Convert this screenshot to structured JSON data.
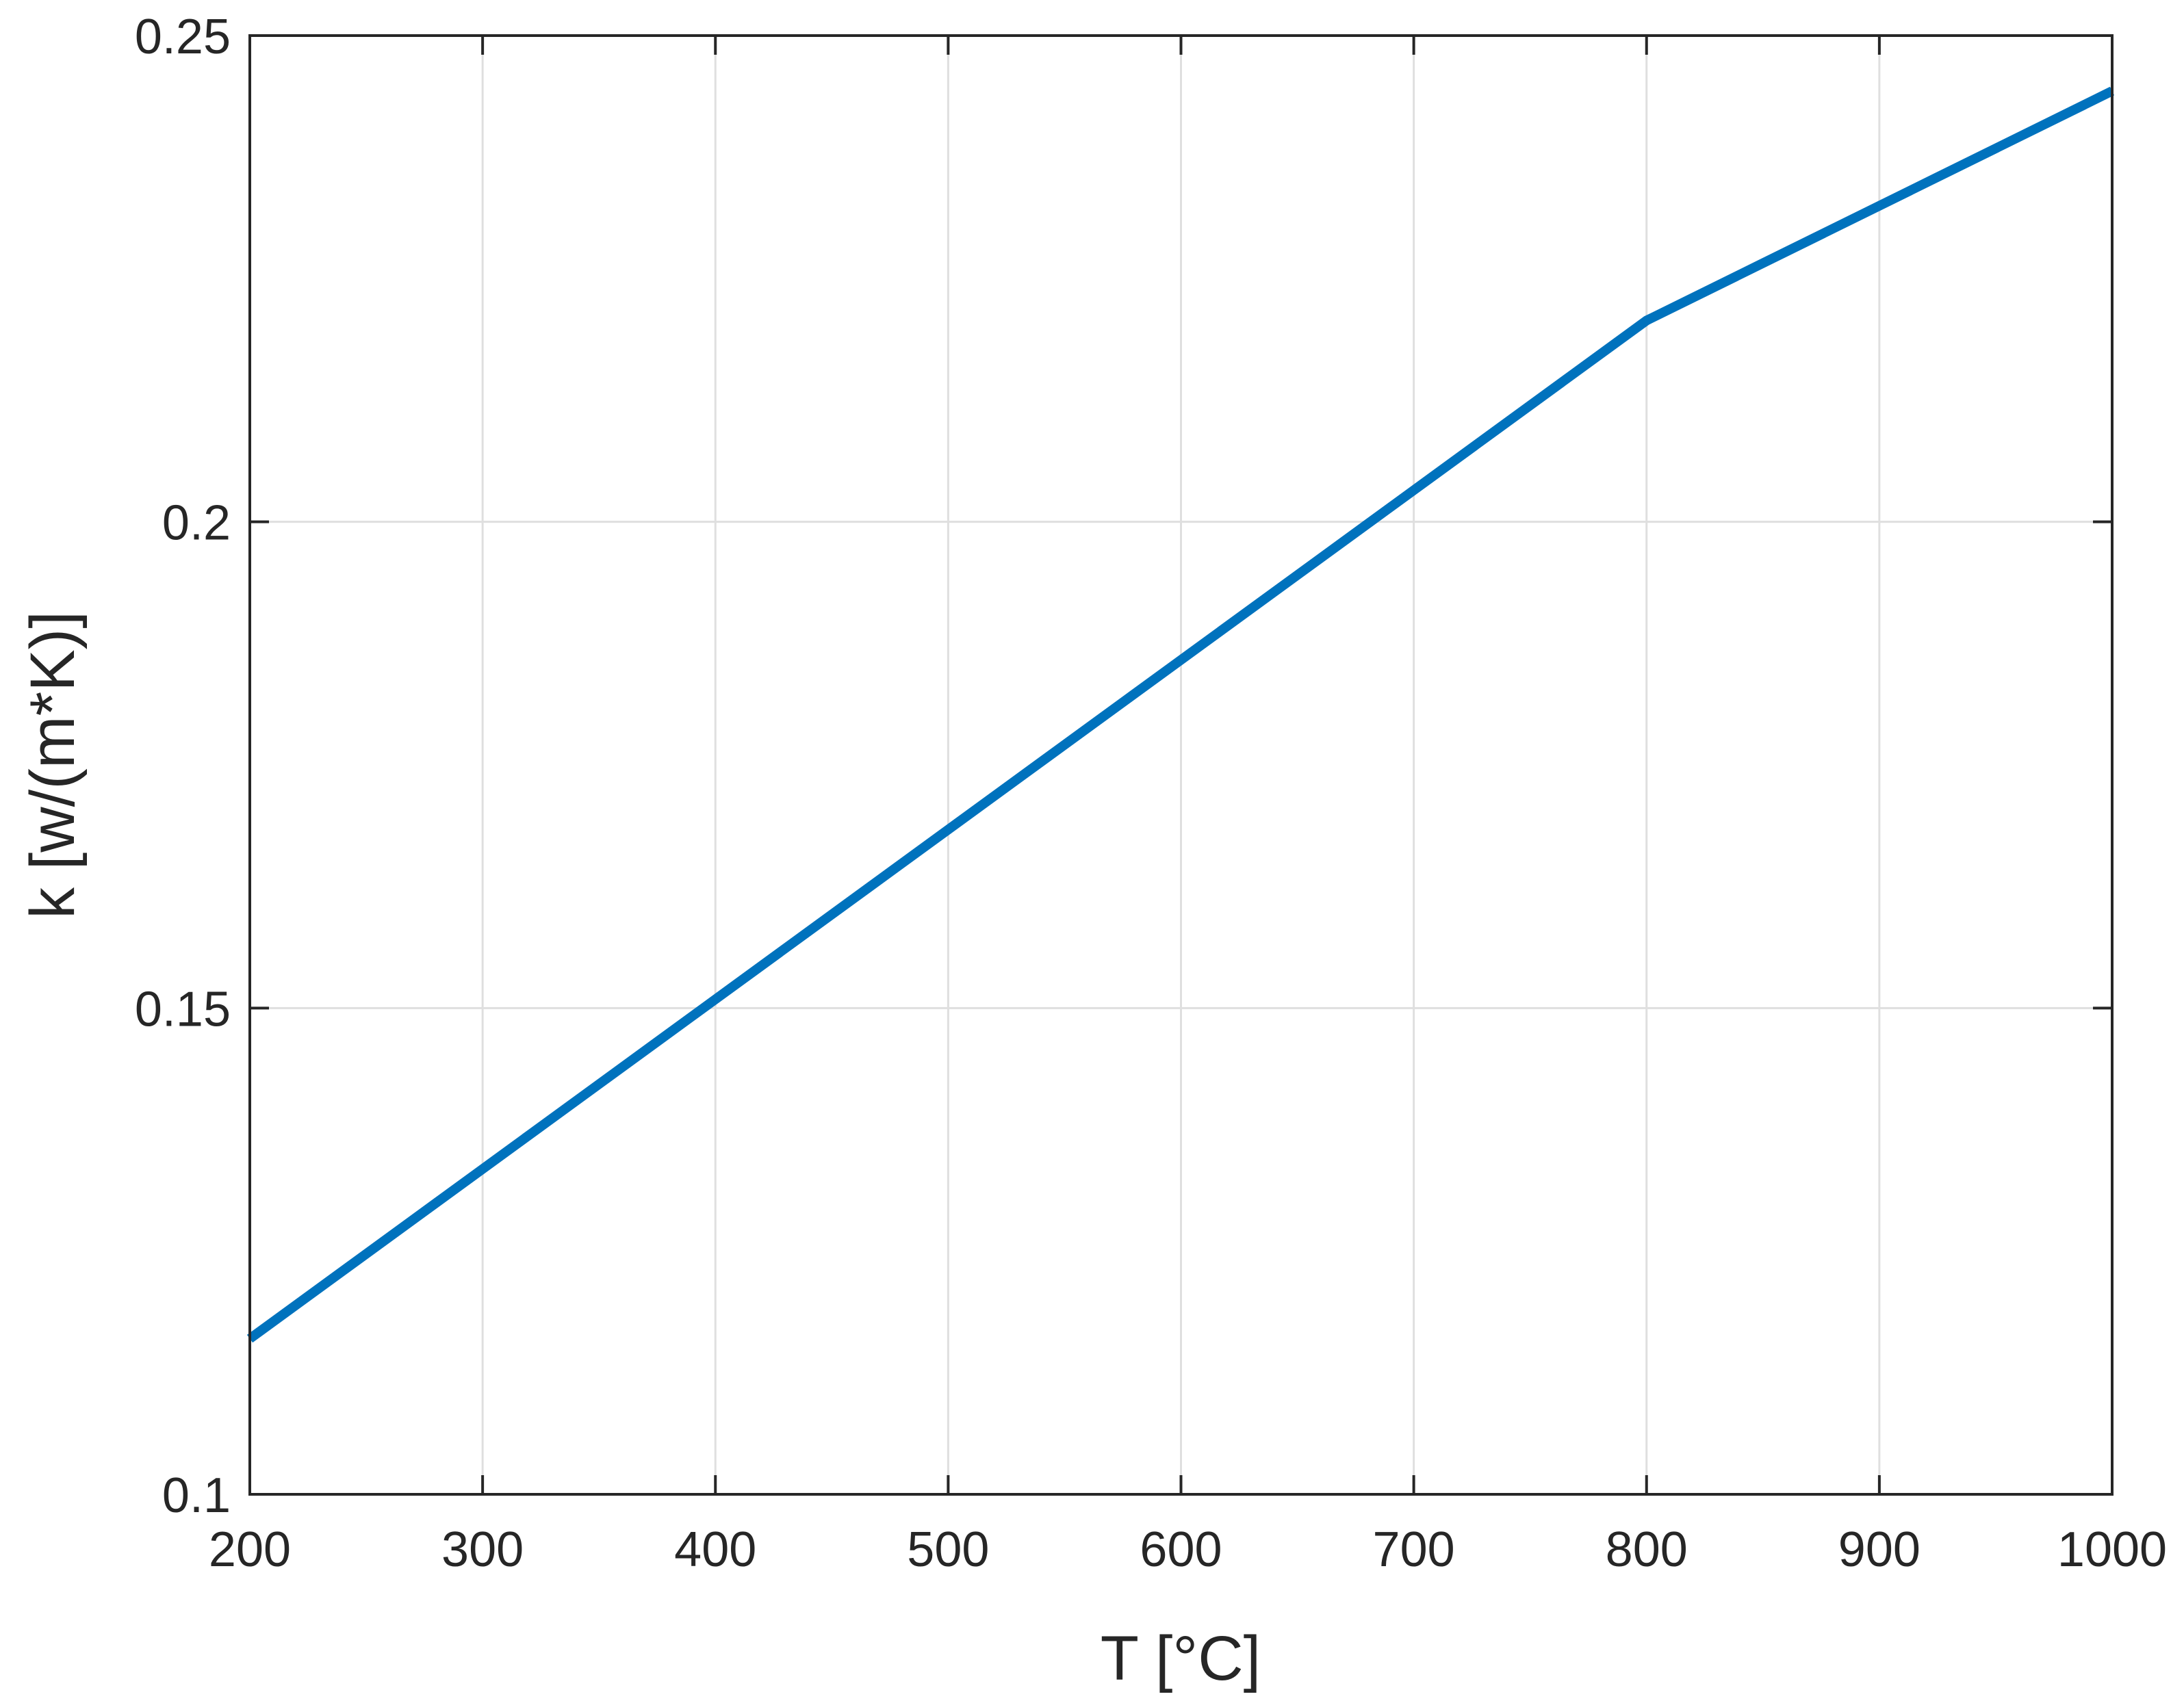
{
  "chart_data": {
    "type": "line",
    "title": "",
    "xlabel": "T [°C]",
    "ylabel": "k [w/(m*K)]",
    "xlim": [
      200,
      1000
    ],
    "ylim": [
      0.1,
      0.25
    ],
    "xticks": [
      200,
      300,
      400,
      500,
      600,
      700,
      800,
      900,
      1000
    ],
    "xtick_labels": [
      "200",
      "300",
      "400",
      "500",
      "600",
      "700",
      "800",
      "900",
      "1000"
    ],
    "yticks": [
      0.1,
      0.15,
      0.2,
      0.25
    ],
    "ytick_labels": [
      "0.1",
      "0.15",
      "0.2",
      "0.25"
    ],
    "grid": true,
    "legend": "none",
    "series": [
      {
        "color": "#0072BD",
        "x": [
          200,
          800,
          1000
        ],
        "y": [
          0.116,
          0.2207,
          0.2443
        ]
      }
    ]
  }
}
